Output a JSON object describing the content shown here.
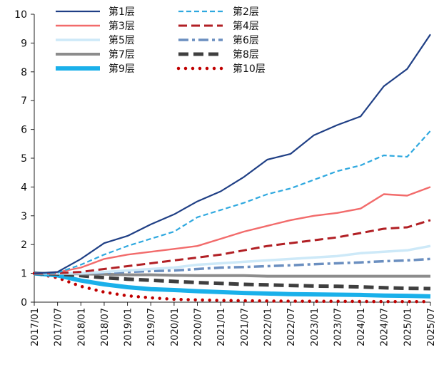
{
  "chart_data": {
    "type": "line",
    "x": [
      "2017/01",
      "2017/07",
      "2018/01",
      "2018/07",
      "2019/01",
      "2019/07",
      "2020/01",
      "2020/07",
      "2021/01",
      "2021/07",
      "2022/01",
      "2022/07",
      "2023/01",
      "2023/07",
      "2024/01",
      "2024/07",
      "2025/01",
      "2025/07"
    ],
    "ylim": [
      0,
      10
    ],
    "yticks": [
      0,
      1,
      2,
      3,
      4,
      5,
      6,
      7,
      8,
      9,
      10
    ],
    "grid": false,
    "legend_placement": "top-left",
    "series": [
      {
        "name": "第1层",
        "color": "#1f3f85",
        "dash": "solid",
        "width": 2.2,
        "values": [
          1.0,
          1.05,
          1.5,
          2.05,
          2.3,
          2.7,
          3.05,
          3.5,
          3.85,
          4.35,
          4.95,
          5.15,
          5.8,
          6.15,
          6.45,
          7.5,
          8.1,
          9.3
        ]
      },
      {
        "name": "第2层",
        "color": "#2ea8df",
        "dash": "dash",
        "width": 2.2,
        "values": [
          1.0,
          1.02,
          1.3,
          1.65,
          1.95,
          2.2,
          2.45,
          2.95,
          3.2,
          3.45,
          3.75,
          3.95,
          4.25,
          4.55,
          4.75,
          5.1,
          5.05,
          5.95
        ]
      },
      {
        "name": "第3层",
        "color": "#f26b6b",
        "dash": "solid",
        "width": 2.4,
        "values": [
          1.0,
          1.04,
          1.2,
          1.5,
          1.65,
          1.75,
          1.85,
          1.95,
          2.2,
          2.45,
          2.65,
          2.85,
          3.0,
          3.1,
          3.25,
          3.75,
          3.7,
          4.0
        ]
      },
      {
        "name": "第4层",
        "color": "#b11f24",
        "dash": "longdash",
        "width": 3,
        "values": [
          1.0,
          1.01,
          1.05,
          1.15,
          1.25,
          1.35,
          1.45,
          1.55,
          1.65,
          1.8,
          1.95,
          2.05,
          2.15,
          2.25,
          2.4,
          2.55,
          2.6,
          2.85
        ]
      },
      {
        "name": "第5层",
        "color": "#cde9f8",
        "dash": "solid",
        "width": 3.5,
        "values": [
          1.0,
          1.0,
          1.0,
          1.05,
          1.1,
          1.15,
          1.2,
          1.3,
          1.35,
          1.4,
          1.45,
          1.5,
          1.55,
          1.6,
          1.7,
          1.75,
          1.8,
          1.95
        ]
      },
      {
        "name": "第6层",
        "color": "#6b8fc0",
        "dash": "dashdot",
        "width": 3.5,
        "values": [
          1.0,
          1.0,
          1.0,
          1.02,
          1.05,
          1.08,
          1.1,
          1.15,
          1.2,
          1.22,
          1.25,
          1.28,
          1.32,
          1.35,
          1.38,
          1.42,
          1.45,
          1.5
        ]
      },
      {
        "name": "第7层",
        "color": "#8c8c8c",
        "dash": "solid",
        "width": 4,
        "values": [
          1.0,
          1.0,
          0.98,
          0.97,
          0.95,
          0.95,
          0.93,
          0.92,
          0.92,
          0.92,
          0.9,
          0.9,
          0.9,
          0.9,
          0.9,
          0.9,
          0.9,
          0.9
        ]
      },
      {
        "name": "第8层",
        "color": "#3f3f3f",
        "dash": "bigdash",
        "width": 5,
        "values": [
          1.0,
          0.98,
          0.92,
          0.85,
          0.8,
          0.76,
          0.72,
          0.68,
          0.65,
          0.62,
          0.6,
          0.58,
          0.56,
          0.55,
          0.53,
          0.5,
          0.48,
          0.47
        ]
      },
      {
        "name": "第9层",
        "color": "#1ab0ea",
        "dash": "solid",
        "width": 6,
        "values": [
          1.0,
          0.93,
          0.75,
          0.62,
          0.52,
          0.45,
          0.42,
          0.38,
          0.35,
          0.32,
          0.3,
          0.28,
          0.27,
          0.26,
          0.25,
          0.23,
          0.22,
          0.2
        ]
      },
      {
        "name": "第10层",
        "color": "#c00000",
        "dash": "dot",
        "width": 4.5,
        "values": [
          1.0,
          0.85,
          0.55,
          0.35,
          0.22,
          0.15,
          0.1,
          0.08,
          0.06,
          0.05,
          0.04,
          0.035,
          0.03,
          0.03,
          0.025,
          0.02,
          0.02,
          0.02
        ]
      }
    ]
  }
}
